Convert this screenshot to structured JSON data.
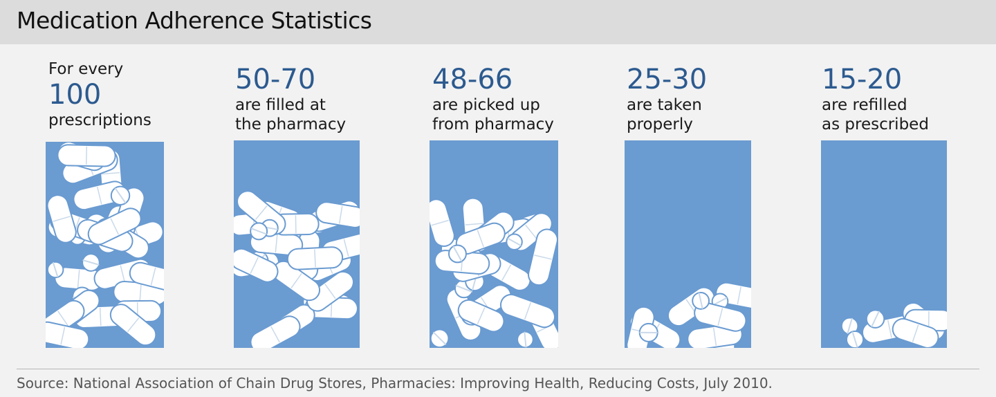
{
  "title": "Medication Adherence Statistics",
  "columns": [
    {
      "top_label": "For every",
      "number": "100",
      "bottom_label": [
        "prescriptions"
      ]
    },
    {
      "top_label": "",
      "number": "50-70",
      "bottom_label": [
        "are filled at",
        "the pharmacy"
      ]
    },
    {
      "top_label": "",
      "number": "48-66",
      "bottom_label": [
        "are picked up",
        "from pharmacy"
      ]
    },
    {
      "top_label": "",
      "number": "25-30",
      "bottom_label": [
        "are taken",
        "properly"
      ]
    },
    {
      "top_label": "",
      "number": "15-20",
      "bottom_label": [
        "are refilled",
        "as prescribed"
      ]
    }
  ],
  "source": "Source: National Association of Chain Drug Stores, Pharmacies: Improving Health, Reducing Costs, July 2010.",
  "colors": {
    "bin": "#6a9bd1",
    "number": "#2c5a8f",
    "pill": "#ffffff",
    "title_bar": "#dcdcdc"
  },
  "chart_data": {
    "type": "bar",
    "categories": [
      "For every 100 prescriptions",
      "are filled at the pharmacy",
      "are picked up from pharmacy",
      "are taken properly",
      "are refilled as prescribed"
    ],
    "series": [
      {
        "values": [
          100,
          70,
          66,
          30,
          20
        ]
      }
    ],
    "value_ranges": [
      [
        100,
        100
      ],
      [
        50,
        70
      ],
      [
        48,
        66
      ],
      [
        25,
        30
      ],
      [
        15,
        20
      ]
    ],
    "fill_fraction": [
      1.0,
      0.7,
      0.66,
      0.3,
      0.2
    ],
    "ylim": [
      0,
      100
    ]
  }
}
